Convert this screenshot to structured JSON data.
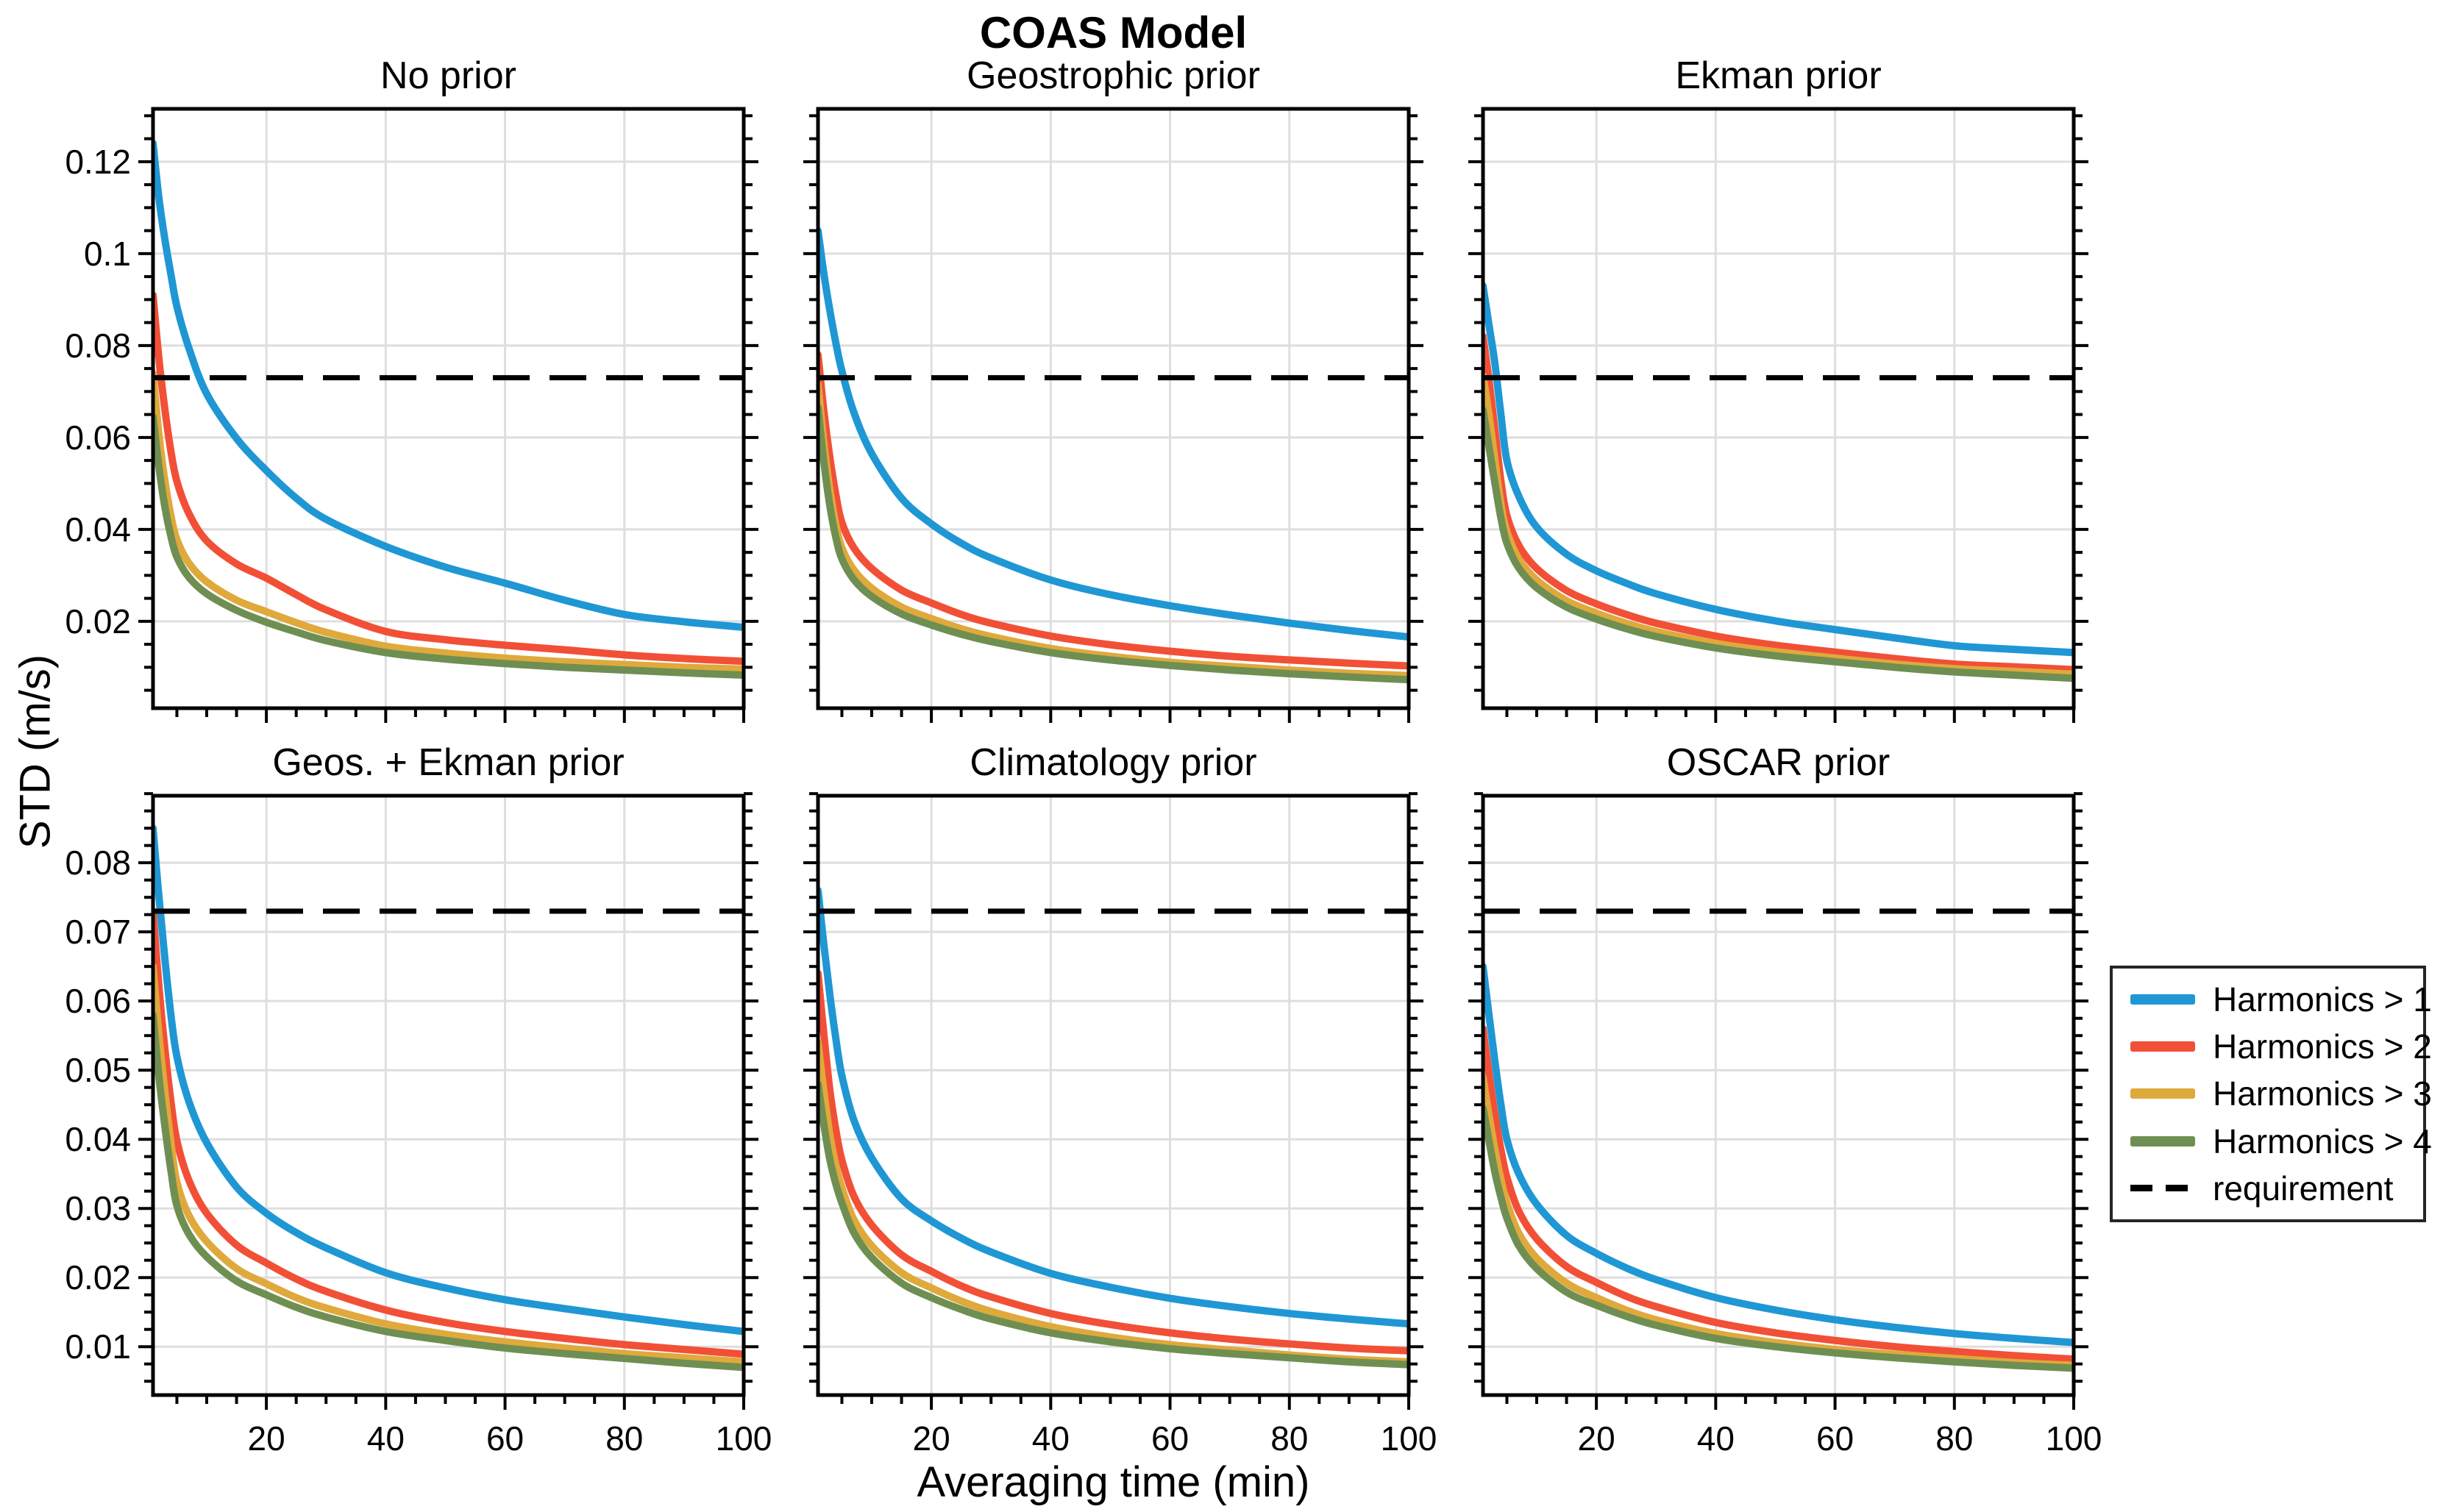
{
  "chart_data": {
    "type": "line",
    "suptitle": "COAS Model",
    "xlabel": "Averaging time (min)",
    "ylabel": "STD (m/s)",
    "xlim": [
      1,
      100
    ],
    "xticks": [
      20,
      40,
      60,
      80,
      100
    ],
    "xtick_labels": [
      "20",
      "40",
      "60",
      "80",
      "100"
    ],
    "x_minor_step": 5,
    "grid": "major-only",
    "legend_position": "outside-right",
    "requirement_value": 0.073,
    "x": [
      1,
      2,
      3,
      4,
      5,
      7,
      10,
      15,
      20,
      25,
      30,
      40,
      50,
      60,
      70,
      80,
      90,
      100
    ],
    "legend": {
      "entries": [
        {
          "label": "Harmonics > 1",
          "color": "#1f97d4",
          "style": "solid"
        },
        {
          "label": "Harmonics > 2",
          "color": "#f15037",
          "style": "solid"
        },
        {
          "label": "Harmonics > 3",
          "color": "#dfa93c",
          "style": "solid"
        },
        {
          "label": "Harmonics > 4",
          "color": "#6e8f51",
          "style": "solid"
        },
        {
          "label": "requirement",
          "color": "#000000",
          "style": "dashed"
        }
      ]
    },
    "rows": [
      {
        "ylim": [
          0.0011,
          0.1315
        ],
        "yticks": [
          0.02,
          0.04,
          0.06,
          0.08,
          0.1,
          0.12
        ],
        "ytick_labels": [
          "0.02",
          "0.04",
          "0.06",
          "0.08",
          "0.1",
          "0.12"
        ],
        "y_minor_step": 0.005
      },
      {
        "ylim": [
          0.003,
          0.0897
        ],
        "yticks": [
          0.01,
          0.02,
          0.03,
          0.04,
          0.05,
          0.06,
          0.07,
          0.08
        ],
        "ytick_labels": [
          "0.01",
          "0.02",
          "0.03",
          "0.04",
          "0.05",
          "0.06",
          "0.07",
          "0.08"
        ],
        "y_minor_step": 0.0025
      }
    ],
    "panels": [
      {
        "title": "No prior",
        "row": 0,
        "col": 0,
        "series": [
          [
            0.124,
            0.112,
            0.103,
            0.0955,
            0.0885,
            0.0795,
            0.0695,
            0.0598,
            0.0528,
            0.0468,
            0.0422,
            0.0363,
            0.0318,
            0.0283,
            0.0246,
            0.0215,
            0.0199,
            0.0187
          ],
          [
            0.091,
            0.077,
            0.066,
            0.057,
            0.0505,
            0.0435,
            0.0375,
            0.0325,
            0.0294,
            0.0258,
            0.0225,
            0.0178,
            0.016,
            0.0148,
            0.0138,
            0.0127,
            0.0119,
            0.0113
          ],
          [
            0.074,
            0.0605,
            0.0505,
            0.043,
            0.0378,
            0.0327,
            0.0286,
            0.0246,
            0.0221,
            0.0197,
            0.0176,
            0.0146,
            0.0131,
            0.012,
            0.0112,
            0.0106,
            0.01,
            0.0096
          ],
          [
            0.0645,
            0.0535,
            0.0448,
            0.0385,
            0.034,
            0.0296,
            0.026,
            0.0224,
            0.0198,
            0.0177,
            0.0158,
            0.0132,
            0.0118,
            0.0108,
            0.01,
            0.0094,
            0.0088,
            0.0083
          ]
        ]
      },
      {
        "title": "Geostrophic prior",
        "row": 0,
        "col": 1,
        "series": [
          [
            0.105,
            0.0955,
            0.0875,
            0.0805,
            0.0745,
            0.0655,
            0.0565,
            0.0468,
            0.0412,
            0.037,
            0.0338,
            0.029,
            0.0258,
            0.0234,
            0.0214,
            0.0196,
            0.018,
            0.0166
          ],
          [
            0.078,
            0.0655,
            0.0555,
            0.0475,
            0.0415,
            0.036,
            0.0315,
            0.0268,
            0.024,
            0.0215,
            0.0196,
            0.0168,
            0.0149,
            0.0135,
            0.0124,
            0.0116,
            0.0109,
            0.0103
          ],
          [
            0.0715,
            0.0585,
            0.0485,
            0.041,
            0.036,
            0.0312,
            0.0272,
            0.0231,
            0.0206,
            0.0184,
            0.0167,
            0.0141,
            0.0124,
            0.0111,
            0.0102,
            0.0094,
            0.0087,
            0.0082
          ],
          [
            0.0665,
            0.0545,
            0.045,
            0.0382,
            0.0336,
            0.0291,
            0.0254,
            0.0216,
            0.0192,
            0.0172,
            0.0156,
            0.0132,
            0.0116,
            0.0104,
            0.0094,
            0.0086,
            0.0079,
            0.0073
          ]
        ]
      },
      {
        "title": "Ekman prior",
        "row": 0,
        "col": 2,
        "series": [
          [
            0.093,
            0.0845,
            0.076,
            0.065,
            0.055,
            0.0472,
            0.0405,
            0.0346,
            0.031,
            0.0283,
            0.026,
            0.0226,
            0.0201,
            0.0182,
            0.0164,
            0.0147,
            0.0139,
            0.0132
          ],
          [
            0.082,
            0.0725,
            0.0615,
            0.0505,
            0.043,
            0.0365,
            0.0315,
            0.0267,
            0.0238,
            0.0215,
            0.0196,
            0.0168,
            0.0148,
            0.0133,
            0.0119,
            0.0107,
            0.0101,
            0.0095
          ],
          [
            0.0735,
            0.065,
            0.055,
            0.0455,
            0.0395,
            0.0336,
            0.029,
            0.0245,
            0.0218,
            0.0196,
            0.0178,
            0.0152,
            0.0134,
            0.012,
            0.0107,
            0.0097,
            0.0091,
            0.0085
          ],
          [
            0.066,
            0.058,
            0.05,
            0.0425,
            0.037,
            0.0316,
            0.0273,
            0.0231,
            0.0205,
            0.0184,
            0.0167,
            0.0142,
            0.0125,
            0.0112,
            0.01,
            0.009,
            0.0083,
            0.0076
          ]
        ]
      },
      {
        "title": "Geos. + Ekman prior",
        "row": 1,
        "col": 0,
        "series": [
          [
            0.085,
            0.075,
            0.066,
            0.058,
            0.052,
            0.0455,
            0.0395,
            0.0331,
            0.0293,
            0.0265,
            0.0243,
            0.0207,
            0.0185,
            0.0168,
            0.0155,
            0.0143,
            0.0132,
            0.0122
          ],
          [
            0.073,
            0.062,
            0.053,
            0.0455,
            0.0398,
            0.0341,
            0.0293,
            0.0247,
            0.0221,
            0.0198,
            0.018,
            0.0153,
            0.0135,
            0.0122,
            0.0112,
            0.0103,
            0.0096,
            0.0089
          ],
          [
            0.065,
            0.055,
            0.0468,
            0.0395,
            0.0338,
            0.029,
            0.0252,
            0.0213,
            0.0191,
            0.0171,
            0.0156,
            0.0133,
            0.0118,
            0.0107,
            0.0098,
            0.009,
            0.0084,
            0.0078
          ],
          [
            0.058,
            0.049,
            0.0418,
            0.0355,
            0.0304,
            0.0263,
            0.023,
            0.0195,
            0.0175,
            0.0157,
            0.0143,
            0.0122,
            0.0109,
            0.0098,
            0.009,
            0.0083,
            0.0076,
            0.007
          ]
        ]
      },
      {
        "title": "Climatology prior",
        "row": 1,
        "col": 1,
        "series": [
          [
            0.076,
            0.068,
            0.0608,
            0.0545,
            0.0492,
            0.0428,
            0.0373,
            0.0314,
            0.0282,
            0.0257,
            0.0237,
            0.0206,
            0.0186,
            0.017,
            0.0158,
            0.0148,
            0.014,
            0.0133
          ],
          [
            0.064,
            0.055,
            0.047,
            0.0413,
            0.037,
            0.0318,
            0.0276,
            0.0233,
            0.0209,
            0.0188,
            0.0172,
            0.0148,
            0.0132,
            0.012,
            0.0111,
            0.0104,
            0.0098,
            0.0094
          ],
          [
            0.054,
            0.0468,
            0.0406,
            0.0362,
            0.033,
            0.0284,
            0.0246,
            0.0207,
            0.0185,
            0.0166,
            0.0151,
            0.0129,
            0.0114,
            0.0103,
            0.0095,
            0.0088,
            0.0082,
            0.0078
          ],
          [
            0.048,
            0.042,
            0.037,
            0.0335,
            0.0308,
            0.0265,
            0.0229,
            0.0192,
            0.0171,
            0.0154,
            0.014,
            0.012,
            0.0107,
            0.0097,
            0.009,
            0.0084,
            0.0078,
            0.0074
          ]
        ]
      },
      {
        "title": "OSCAR prior",
        "row": 1,
        "col": 2,
        "series": [
          [
            0.065,
            0.058,
            0.0512,
            0.045,
            0.04,
            0.035,
            0.0306,
            0.0261,
            0.0235,
            0.0214,
            0.0197,
            0.0171,
            0.0153,
            0.0139,
            0.0128,
            0.0119,
            0.0112,
            0.0106
          ],
          [
            0.056,
            0.0495,
            0.0435,
            0.0385,
            0.0345,
            0.0296,
            0.0256,
            0.0216,
            0.0193,
            0.0173,
            0.0158,
            0.0135,
            0.012,
            0.0109,
            0.01,
            0.0093,
            0.0087,
            0.0082
          ],
          [
            0.049,
            0.0435,
            0.0385,
            0.0342,
            0.0308,
            0.0264,
            0.0228,
            0.0192,
            0.0171,
            0.0153,
            0.0139,
            0.0119,
            0.0106,
            0.0096,
            0.0089,
            0.0083,
            0.0077,
            0.0073
          ],
          [
            0.0445,
            0.0398,
            0.0352,
            0.0316,
            0.0286,
            0.0246,
            0.0213,
            0.0179,
            0.016,
            0.0144,
            0.0131,
            0.0112,
            0.01,
            0.0091,
            0.0084,
            0.0078,
            0.0073,
            0.0069
          ]
        ]
      }
    ]
  }
}
